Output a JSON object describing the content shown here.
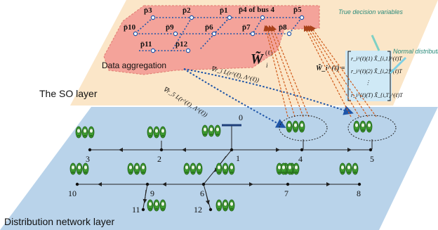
{
  "layers": {
    "so_label": "The SO layer",
    "dn_label": "Distribution network layer"
  },
  "so_nodes": [
    {
      "id": "p3",
      "label": "p̄3"
    },
    {
      "id": "p2",
      "label": "p̄2"
    },
    {
      "id": "p1",
      "label": "p̄1"
    },
    {
      "id": "p4",
      "label": "p̄4 of bus 4"
    },
    {
      "id": "p5",
      "label": "p̄5"
    },
    {
      "id": "p10",
      "label": "p̄10"
    },
    {
      "id": "p9",
      "label": "p̄9"
    },
    {
      "id": "p6",
      "label": "p̄6"
    },
    {
      "id": "p7",
      "label": "p̄7"
    },
    {
      "id": "p8",
      "label": "p̄8"
    },
    {
      "id": "p11",
      "label": "p̄11"
    },
    {
      "id": "p12",
      "label": "p̄12"
    }
  ],
  "labels": {
    "data_aggregation": "Data aggregation",
    "w_symbol": "W̃",
    "w_superscript": "(ℓ)",
    "w_subscript": "i",
    "true_decision": "True decision variables",
    "normal_dist": "Normal distributions",
    "grad_r": "∇r_i L(r^(ℓ), Λ^(ℓ))",
    "grad_x": "∇r_5 L(r^(ℓ), Λ^(ℓ))",
    "matrix_lhs": "W̃_i^(ℓ) =",
    "matrix_rows": [
      "r_i^(ℓ)(1) X̃_{i,1}^(ℓ)T",
      "r_i^(ℓ)(2) X̃_{i,2}^(ℓ)T",
      "⋮",
      "r_i^(ℓ)(T) X̃_{i,T}^(ℓ)T"
    ]
  },
  "buses": [
    {
      "id": "0",
      "label": "0"
    },
    {
      "id": "1",
      "label": "1"
    },
    {
      "id": "2",
      "label": "2"
    },
    {
      "id": "3",
      "label": "3"
    },
    {
      "id": "4",
      "label": "4"
    },
    {
      "id": "5",
      "label": "5"
    },
    {
      "id": "6",
      "label": "6"
    },
    {
      "id": "7",
      "label": "7"
    },
    {
      "id": "8",
      "label": "8"
    },
    {
      "id": "9",
      "label": "9"
    },
    {
      "id": "10",
      "label": "10"
    },
    {
      "id": "11",
      "label": "11"
    },
    {
      "id": "12",
      "label": "12"
    }
  ],
  "colors": {
    "so_plane": "#fbe6c8",
    "pink_region": "#f4a39a",
    "dn_plane": "#b9d3ea",
    "matrix_bg": "#cfe9f6",
    "dotted_blue": "#1f55a8",
    "dashed_orange": "#cf5a1a",
    "car_green": "#3c9a2e",
    "teal_text": "#2a8a7a"
  }
}
